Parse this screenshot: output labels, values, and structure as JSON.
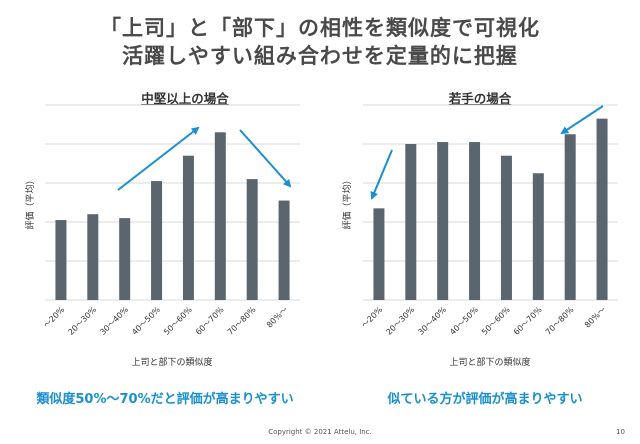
{
  "header": {
    "title_line1": "「上司」と「部下」の相性を類似度で可視化",
    "title_line2": "活躍しやすい組み合わせを定量的に把握"
  },
  "footer": {
    "copyright": "Copyright © 2021 Attelu, Inc.",
    "page_number": "10"
  },
  "colors": {
    "bar": "#5a656e",
    "arrow": "#1a8fd1",
    "caption": "#1a8fd1",
    "grid": "#d9d9d9"
  },
  "chart_data": [
    {
      "type": "bar",
      "title": "中堅以上の場合",
      "xlabel": "上司と部下の類似度",
      "ylabel": "評価（平均）",
      "categories": [
        "～20%",
        "20～30%",
        "30～40%",
        "40～50%",
        "50～60%",
        "60～70%",
        "70～80%",
        "80%～"
      ],
      "values": [
        41,
        44,
        42,
        61,
        74,
        86,
        62,
        51
      ],
      "ylim": [
        0,
        100
      ],
      "grid": true,
      "caption": "類似度50%～70%だと評価が高まりやすい"
    },
    {
      "type": "bar",
      "title": "若手の場合",
      "xlabel": "上司と部下の類似度",
      "ylabel": "評価（平均）",
      "categories": [
        "～20%",
        "20～30%",
        "30～40%",
        "40～50%",
        "50～60%",
        "60～70%",
        "70～80%",
        "80%～"
      ],
      "values": [
        47,
        80,
        81,
        81,
        74,
        65,
        85,
        93
      ],
      "ylim": [
        0,
        100
      ],
      "grid": true,
      "caption": "似ている方が評価が高まりやすい"
    }
  ]
}
